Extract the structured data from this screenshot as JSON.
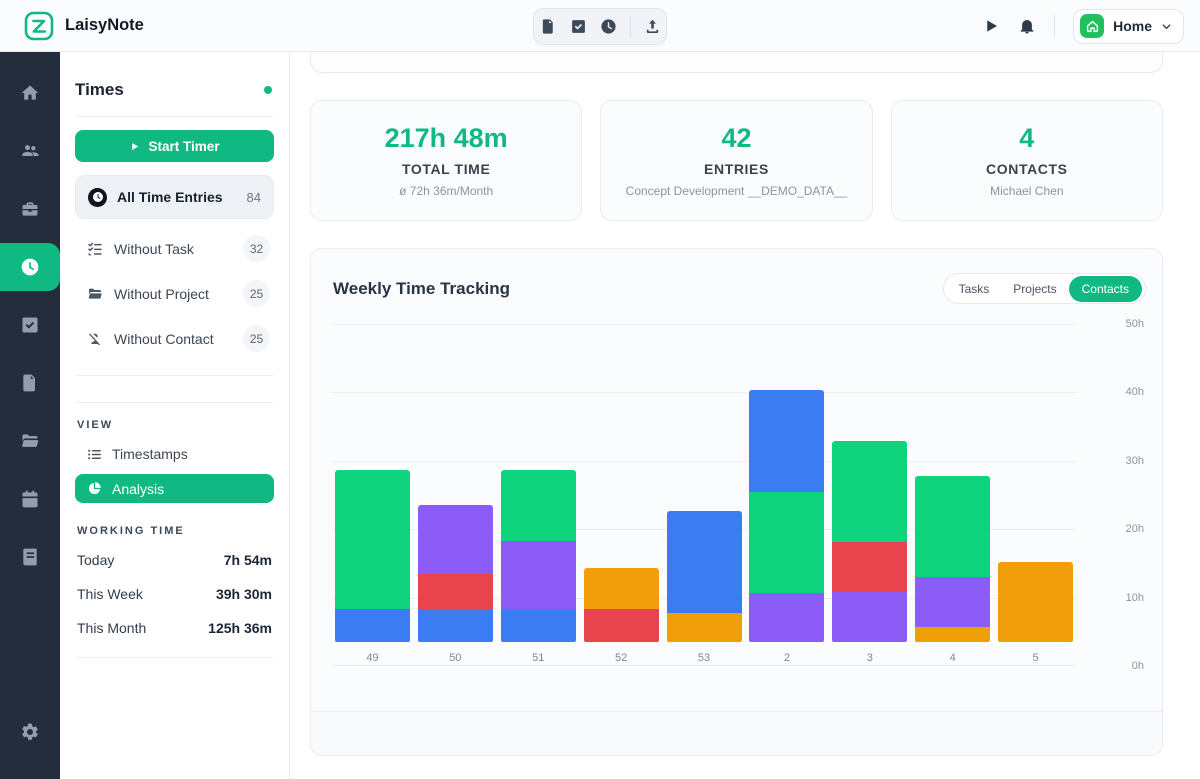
{
  "colors": {
    "accent_green": "#10b981",
    "rail_background": "#232d3c",
    "home_square_green": "#22bf5d"
  },
  "header": {
    "app_name": "LaisyNote",
    "logo_icon": "laisynote-logo",
    "toolbar_icons": [
      "note-icon",
      "check-square-icon",
      "clock-icon",
      "upload-icon"
    ],
    "right_icons": [
      "play-icon",
      "bell-icon"
    ],
    "workspace": {
      "icon": "home-icon",
      "label": "Home",
      "chevron": "chevron-down-icon"
    }
  },
  "rail": {
    "items": [
      {
        "icon": "home"
      },
      {
        "icon": "users"
      },
      {
        "icon": "briefcase"
      },
      {
        "icon": "clock",
        "active": true
      },
      {
        "icon": "check-square"
      },
      {
        "icon": "file-text"
      },
      {
        "icon": "folder-open"
      },
      {
        "icon": "calendar"
      },
      {
        "icon": "book"
      }
    ],
    "bottom": {
      "icon": "settings"
    }
  },
  "sidebar": {
    "title": "Times",
    "status_dot": "green",
    "start_timer_label": "Start Timer",
    "items": [
      {
        "icon": "clock",
        "label": "All Time Entries",
        "count": "84",
        "active": true
      },
      {
        "icon": "checklist",
        "label": "Without Task",
        "count": "32"
      },
      {
        "icon": "folder-open",
        "label": "Without Project",
        "count": "25"
      },
      {
        "icon": "user-x",
        "label": "Without Contact",
        "count": "25"
      }
    ],
    "view_section": {
      "label": "VIEW",
      "items": [
        {
          "icon": "list",
          "label": "Timestamps"
        },
        {
          "icon": "pie-chart",
          "label": "Analysis",
          "active": true
        }
      ]
    },
    "working_time": {
      "label": "WORKING TIME",
      "rows": [
        {
          "label": "Today",
          "value": "7h 54m"
        },
        {
          "label": "This Week",
          "value": "39h 30m"
        },
        {
          "label": "This Month",
          "value": "125h 36m"
        }
      ]
    }
  },
  "stats": [
    {
      "value": "217h 48m",
      "label": "TOTAL TIME",
      "sub": "ø 72h 36m/Month"
    },
    {
      "value": "42",
      "label": "ENTRIES",
      "sub": "Concept Development __DEMO_DATA__"
    },
    {
      "value": "4",
      "label": "CONTACTS",
      "sub": "Michael Chen"
    }
  ],
  "chart_card": {
    "title": "Weekly Time Tracking",
    "tabs": [
      {
        "label": "Tasks"
      },
      {
        "label": "Projects"
      },
      {
        "label": "Contacts",
        "active": true
      }
    ]
  },
  "chart_data": {
    "type": "bar",
    "stacked": true,
    "title": "Weekly Time Tracking",
    "categories": [
      "49",
      "50",
      "51",
      "52",
      "53",
      "2",
      "3",
      "4",
      "5"
    ],
    "x_meaning": "calendar week number",
    "ylabel": "hours",
    "ylim": [
      0,
      50
    ],
    "yticks": [
      "50h",
      "40h",
      "30h",
      "20h",
      "10h",
      "0h"
    ],
    "grid": true,
    "legend_position": "none",
    "series_colors": {
      "green": "#0ed47e",
      "blue": "#3b7cf2",
      "purple": "#8b5cf6",
      "red": "#e8444e",
      "orange": "#f19e0b"
    },
    "bars": [
      {
        "category": "49",
        "segments": [
          [
            "blue",
            4.8
          ],
          [
            "green",
            20.3
          ]
        ]
      },
      {
        "category": "50",
        "segments": [
          [
            "blue",
            4.8
          ],
          [
            "red",
            5.1
          ],
          [
            "purple",
            10.1
          ]
        ]
      },
      {
        "category": "51",
        "segments": [
          [
            "blue",
            4.8
          ],
          [
            "purple",
            10.0
          ],
          [
            "green",
            10.4
          ]
        ]
      },
      {
        "category": "52",
        "segments": [
          [
            "red",
            4.8
          ],
          [
            "orange",
            6.0
          ]
        ]
      },
      {
        "category": "53",
        "segments": [
          [
            "orange",
            4.3
          ],
          [
            "blue",
            14.9
          ]
        ]
      },
      {
        "category": "2",
        "segments": [
          [
            "purple",
            7.2
          ],
          [
            "green",
            14.8
          ],
          [
            "blue",
            14.8
          ]
        ]
      },
      {
        "category": "3",
        "segments": [
          [
            "purple",
            7.3
          ],
          [
            "red",
            7.3
          ],
          [
            "green",
            14.8
          ]
        ]
      },
      {
        "category": "4",
        "segments": [
          [
            "orange",
            2.2
          ],
          [
            "purple",
            7.3
          ],
          [
            "green",
            14.8
          ]
        ]
      },
      {
        "category": "5",
        "segments": [
          [
            "orange",
            11.7
          ]
        ]
      }
    ]
  }
}
